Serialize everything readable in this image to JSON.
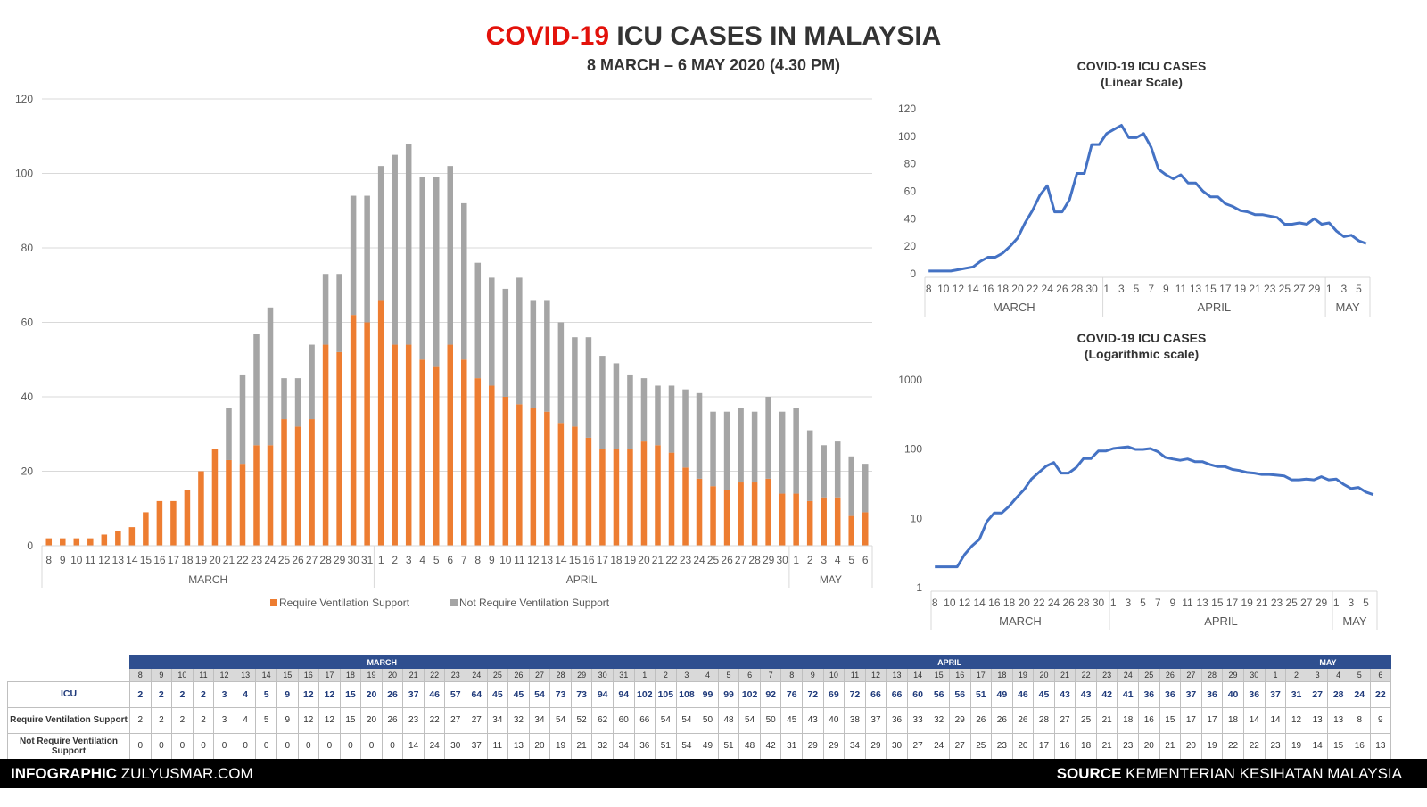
{
  "header": {
    "title_red": "COVID-19",
    "title_rest": " ICU CASES IN MALAYSIA",
    "subtitle": "8 MARCH – 6 MAY 2020 (4.30 PM)"
  },
  "colors": {
    "vent": "#ed7d31",
    "novent": "#a5a5a5",
    "line": "#4472c4",
    "title_red": "#e3120b",
    "table_header": "#2f4f8f"
  },
  "chart_data": [
    {
      "type": "bar",
      "stacked": true,
      "day_labels": [
        "8",
        "9",
        "10",
        "11",
        "12",
        "13",
        "14",
        "15",
        "16",
        "17",
        "18",
        "19",
        "20",
        "21",
        "22",
        "23",
        "24",
        "25",
        "26",
        "27",
        "28",
        "29",
        "30",
        "31",
        "1",
        "2",
        "3",
        "4",
        "5",
        "6",
        "7",
        "8",
        "9",
        "10",
        "11",
        "12",
        "13",
        "14",
        "15",
        "16",
        "17",
        "18",
        "19",
        "20",
        "21",
        "22",
        "23",
        "24",
        "25",
        "26",
        "27",
        "28",
        "29",
        "30",
        "1",
        "2",
        "3",
        "4",
        "5",
        "6"
      ],
      "months": [
        {
          "name": "MARCH",
          "count": 24
        },
        {
          "name": "APRIL",
          "count": 30
        },
        {
          "name": "MAY",
          "count": 6
        }
      ],
      "series": [
        {
          "name": "Require Ventilation Support",
          "values": [
            2,
            2,
            2,
            2,
            3,
            4,
            5,
            9,
            12,
            12,
            15,
            20,
            26,
            23,
            22,
            27,
            27,
            34,
            32,
            34,
            54,
            52,
            62,
            60,
            66,
            54,
            54,
            50,
            48,
            54,
            50,
            45,
            43,
            40,
            38,
            37,
            36,
            33,
            32,
            29,
            26,
            26,
            26,
            28,
            27,
            25,
            21,
            18,
            16,
            15,
            17,
            17,
            18,
            14,
            14,
            12,
            13,
            13,
            8,
            9
          ]
        },
        {
          "name": "Not Require Ventilation Support",
          "values": [
            0,
            0,
            0,
            0,
            0,
            0,
            0,
            0,
            0,
            0,
            0,
            0,
            0,
            14,
            24,
            30,
            37,
            11,
            13,
            20,
            19,
            21,
            32,
            34,
            36,
            51,
            54,
            49,
            51,
            48,
            42,
            31,
            29,
            29,
            34,
            29,
            30,
            27,
            24,
            27,
            25,
            23,
            20,
            17,
            16,
            18,
            21,
            23,
            20,
            21,
            20,
            19,
            22,
            22,
            23,
            19,
            14,
            15,
            16,
            13
          ]
        }
      ],
      "ylim": [
        0,
        120
      ],
      "yticks": [
        0,
        20,
        40,
        60,
        80,
        100,
        120
      ],
      "legend_position": "bottom"
    },
    {
      "type": "line",
      "title": "COVID-19 ICU CASES",
      "subtitle": "(Linear Scale)",
      "series": [
        {
          "values": [
            2,
            2,
            2,
            2,
            3,
            4,
            5,
            9,
            12,
            12,
            15,
            20,
            26,
            37,
            46,
            57,
            64,
            45,
            45,
            54,
            73,
            73,
            94,
            94,
            102,
            105,
            108,
            99,
            99,
            102,
            92,
            76,
            72,
            69,
            72,
            66,
            66,
            60,
            56,
            56,
            51,
            49,
            46,
            45,
            43,
            43,
            42,
            41,
            36,
            36,
            37,
            36,
            40,
            36,
            37,
            31,
            27,
            28,
            24,
            22
          ]
        }
      ],
      "ylim": [
        0,
        120
      ],
      "yticks": [
        0,
        20,
        40,
        60,
        80,
        100,
        120
      ],
      "x_tick_labels": [
        "8",
        "10",
        "12",
        "14",
        "16",
        "18",
        "20",
        "22",
        "24",
        "26",
        "28",
        "30",
        "1",
        "3",
        "5",
        "7",
        "9",
        "11",
        "13",
        "15",
        "17",
        "19",
        "21",
        "23",
        "25",
        "27",
        "29",
        "1",
        "3",
        "5"
      ],
      "months": [
        "MARCH",
        "APRIL",
        "MAY"
      ]
    },
    {
      "type": "line",
      "scale": "log",
      "title": "COVID-19 ICU CASES",
      "subtitle": "(Logarithmic scale)",
      "yticks": [
        1,
        10,
        100,
        1000
      ],
      "ylim": [
        1,
        1000
      ],
      "x_tick_labels": [
        "8",
        "10",
        "12",
        "14",
        "16",
        "18",
        "20",
        "22",
        "24",
        "26",
        "28",
        "30",
        "1",
        "3",
        "5",
        "7",
        "9",
        "11",
        "13",
        "15",
        "17",
        "19",
        "21",
        "23",
        "25",
        "27",
        "29",
        "1",
        "3",
        "5"
      ],
      "months": [
        "MARCH",
        "APRIL",
        "MAY"
      ]
    }
  ],
  "table": {
    "months": [
      {
        "name": "MARCH",
        "count": 24
      },
      {
        "name": "APRIL",
        "count": 30
      },
      {
        "name": "MAY",
        "count": 6
      }
    ],
    "rows": [
      {
        "label": "ICU",
        "key": "icu"
      },
      {
        "label": "Require Ventilation Support",
        "key": "vent"
      },
      {
        "label": "Not Require Ventilation Support",
        "key": "novent"
      }
    ]
  },
  "footer": {
    "left_bold": "INFOGRAPHIC",
    "left_text": " ZULYUSMAR.COM",
    "right_bold": "SOURCE",
    "right_text": " KEMENTERIAN KESIHATAN MALAYSIA"
  }
}
